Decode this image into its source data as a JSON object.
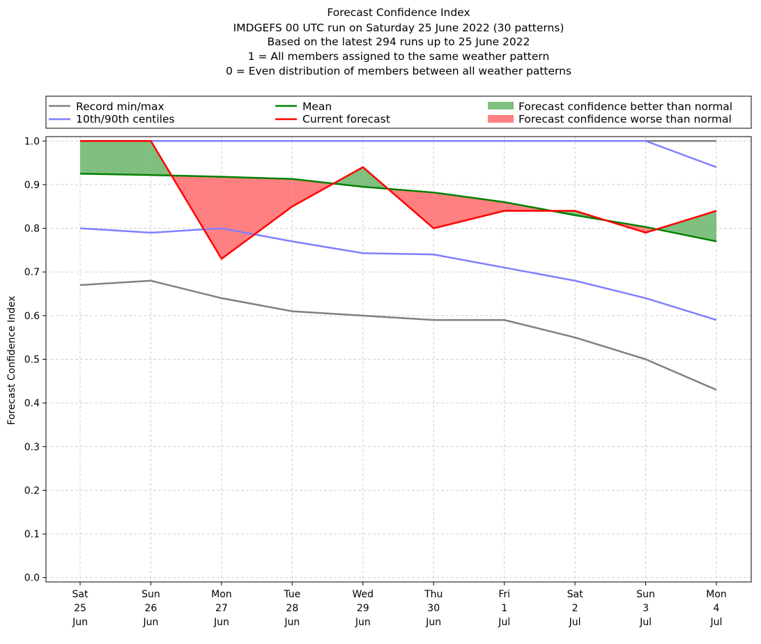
{
  "chart_data": {
    "type": "line",
    "title_lines": [
      "Forecast Confidence Index",
      "IMDGEFS 00 UTC run on Saturday 25 June 2022 (30 patterns)",
      "Based on the latest 294 runs up to 25 June 2022",
      "1 = All members assigned to the same weather pattern",
      "0 = Even distribution of members between all weather patterns"
    ],
    "ylabel": "Forecast Confidence Index",
    "ylim": [
      -0.01,
      1.01
    ],
    "yticks": [
      "0.0",
      "0.1",
      "0.2",
      "0.3",
      "0.4",
      "0.5",
      "0.6",
      "0.7",
      "0.8",
      "0.9",
      "1.0"
    ],
    "x_categories": [
      [
        "Sat",
        "25",
        "Jun"
      ],
      [
        "Sun",
        "26",
        "Jun"
      ],
      [
        "Mon",
        "27",
        "Jun"
      ],
      [
        "Tue",
        "28",
        "Jun"
      ],
      [
        "Wed",
        "29",
        "Jun"
      ],
      [
        "Thu",
        "30",
        "Jun"
      ],
      [
        "Fri",
        "1",
        "Jul"
      ],
      [
        "Sat",
        "2",
        "Jul"
      ],
      [
        "Sun",
        "3",
        "Jul"
      ],
      [
        "Mon",
        "4",
        "Jul"
      ]
    ],
    "grid": true,
    "legend_placement": "top, above plot, 3 columns",
    "series": [
      {
        "name": "Record min/max",
        "role": "record_min",
        "color": "#808080",
        "values": [
          0.67,
          0.68,
          0.64,
          0.61,
          0.6,
          0.59,
          0.59,
          0.55,
          0.5,
          0.43
        ]
      },
      {
        "name": "Record min/max",
        "role": "record_max",
        "color": "#808080",
        "values": [
          1.0,
          1.0,
          1.0,
          1.0,
          1.0,
          1.0,
          1.0,
          1.0,
          1.0,
          1.0
        ]
      },
      {
        "name": "10th/90th centiles",
        "role": "p10",
        "color": "#7f7fff",
        "values": [
          0.8,
          0.79,
          0.8,
          0.77,
          0.743,
          0.74,
          0.71,
          0.68,
          0.64,
          0.59
        ]
      },
      {
        "name": "10th/90th centiles",
        "role": "p90",
        "color": "#7f7fff",
        "values": [
          1.0,
          1.0,
          1.0,
          1.0,
          1.0,
          1.0,
          1.0,
          1.0,
          1.0,
          0.94
        ]
      },
      {
        "name": "Mean",
        "role": "mean",
        "color": "#008000",
        "values": [
          0.925,
          0.922,
          0.918,
          0.913,
          0.895,
          0.882,
          0.86,
          0.83,
          0.803,
          0.77
        ]
      },
      {
        "name": "Current forecast",
        "role": "current",
        "color": "#ff0000",
        "values": [
          1.0,
          1.0,
          0.73,
          0.85,
          0.94,
          0.8,
          0.84,
          0.84,
          0.79,
          0.84
        ]
      }
    ],
    "fills": [
      {
        "name": "Forecast confidence better than normal",
        "color": "#7fbf7f"
      },
      {
        "name": "Forecast confidence worse than normal",
        "color": "#ff8080"
      }
    ]
  }
}
